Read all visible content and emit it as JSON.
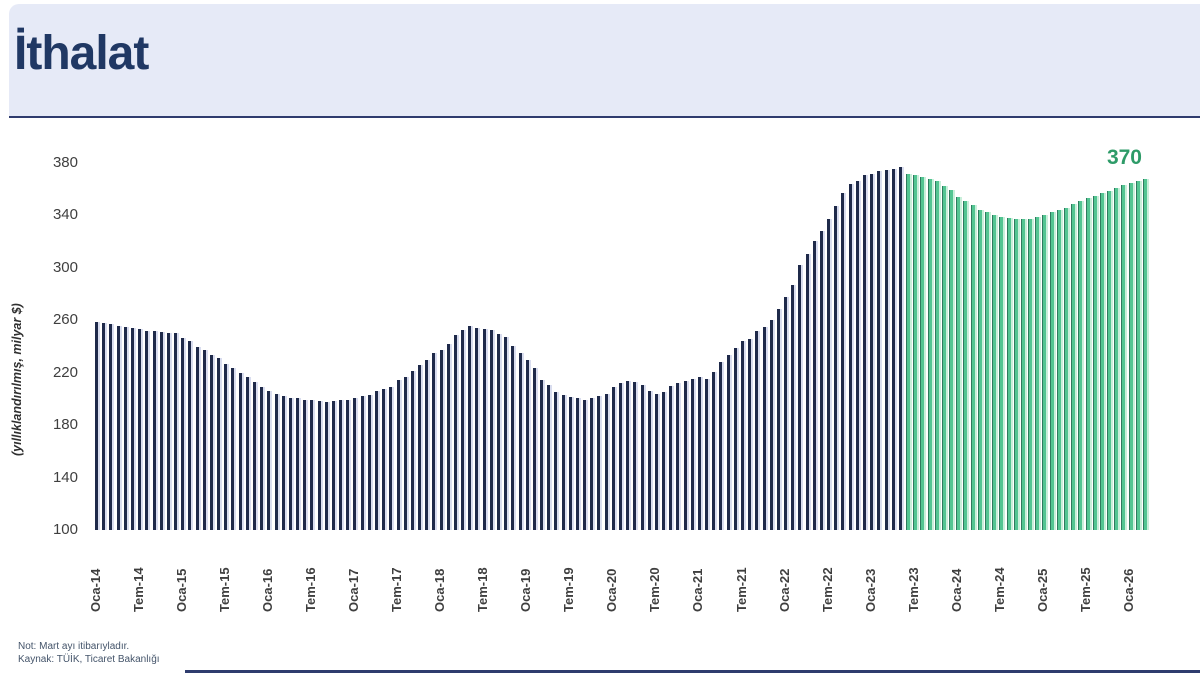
{
  "header": {
    "title": "İthalat"
  },
  "chart_data": {
    "type": "bar",
    "title": "İthalat",
    "ylabel": "(yıllıklandırılmış, milyar $)",
    "ylim": [
      100,
      380
    ],
    "yticks": [
      380,
      340,
      300,
      260,
      220,
      180,
      140,
      100
    ],
    "grid": false,
    "legend_position": "none",
    "x_start": "Oca-14",
    "x_end": "Mar-26",
    "xtick_every_months": 6,
    "xtick_labels": [
      "Oca-14",
      "Tem-14",
      "Oca-15",
      "Tem-15",
      "Oca-16",
      "Tem-16",
      "Oca-17",
      "Tem-17",
      "Oca-18",
      "Tem-18",
      "Oca-19",
      "Tem-19",
      "Oca-20",
      "Tem-20",
      "Oca-21",
      "Tem-21",
      "Oca-22",
      "Tem-22",
      "Oca-23",
      "Tem-23",
      "Oca-24",
      "Tem-24",
      "Oca-25",
      "Tem-25",
      "Oca-26"
    ],
    "series": [
      {
        "name": "actual-dark-bars",
        "color": "#1F2A4A",
        "from_index": 0,
        "to_index": 112
      },
      {
        "name": "forecast-green-bars",
        "color": "#53C592",
        "from_index": 113,
        "to_index": 146
      }
    ],
    "split_index": 113,
    "values": [
      259,
      258,
      257,
      256,
      255,
      254,
      253,
      252,
      251.5,
      251,
      250.5,
      250,
      246.5,
      244,
      240,
      237,
      233.5,
      231,
      227,
      223.5,
      220,
      217,
      213,
      209,
      206,
      204,
      202,
      201,
      200.5,
      199.5,
      199,
      198.5,
      198,
      198.5,
      199,
      199.5,
      201,
      202.5,
      203,
      206,
      207.5,
      209,
      214.5,
      217,
      221.5,
      226,
      230,
      235,
      237.5,
      242,
      248.5,
      252.5,
      255.5,
      254.5,
      253.5,
      252.5,
      249.5,
      247,
      240.5,
      235,
      229.5,
      223.5,
      214.5,
      210.5,
      205.5,
      203,
      201.5,
      200.5,
      199.5,
      200.5,
      202,
      204,
      209,
      212,
      214,
      213,
      210.5,
      206,
      204,
      205.5,
      209.5,
      212,
      214,
      215.5,
      216.5,
      215.5,
      220.5,
      228,
      233.5,
      238.5,
      244,
      246,
      251.5,
      255,
      260.5,
      269,
      278,
      287,
      302.5,
      310.5,
      320.5,
      328,
      337,
      347.5,
      357.5,
      364,
      366.5,
      370.5,
      372,
      374,
      375,
      375.5,
      377,
      372,
      371,
      369.5,
      367.5,
      366,
      362.5,
      359.5,
      354,
      351,
      348,
      344.5,
      342.5,
      340.5,
      339,
      338,
      337.5,
      337,
      337.5,
      338.5,
      340.5,
      342.5,
      344.5,
      346,
      349,
      351,
      353,
      355,
      357,
      359,
      361,
      363,
      364.5,
      366,
      368
    ],
    "last_value_label": "370"
  },
  "footnotes": {
    "note": "Not:  Mart ayı itibarıyladır.",
    "source": "Kaynak: TÜİK, Ticaret Bakanlığı"
  },
  "colors": {
    "title": "#203864",
    "header_bg": "#E6EAF7",
    "rule": "#2F3C6E",
    "bar_actual": "#1F2A4A",
    "bar_forecast": "#53C592",
    "value_label": "#2E9B68",
    "axis_text": "#3F3F3F",
    "note_text": "#44546A"
  }
}
